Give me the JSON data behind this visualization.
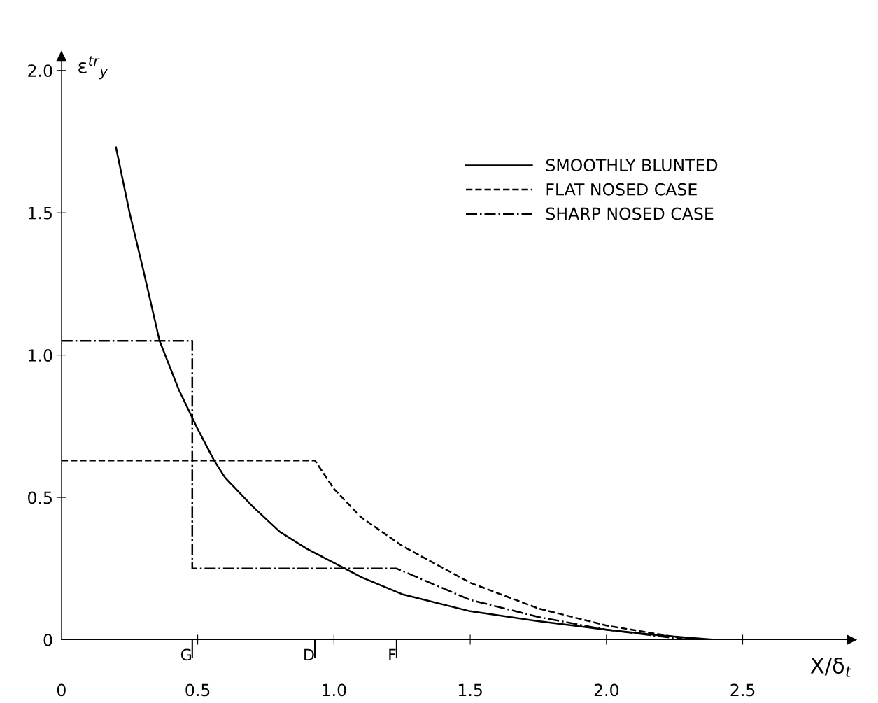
{
  "chart_data": {
    "type": "line",
    "xlabel": "X/δ$_{t}$",
    "ylabel": "ε$^{tr}$$_{y}$",
    "xlim": [
      0,
      2.9
    ],
    "ylim": [
      0,
      2.05
    ],
    "xticks": [
      0,
      0.5,
      {
        "value": 1.0,
        "label": "1.0"
      },
      1.5,
      {
        "value": 2.0,
        "label": "2.0"
      },
      2.5
    ],
    "yticks": [
      0,
      0.5,
      {
        "value": 1.0,
        "label": "1.0"
      },
      1.5,
      {
        "value": 2.0,
        "label": "2.0"
      }
    ],
    "grid": false,
    "legend": "top right",
    "marker": "none",
    "series": [
      {
        "name": "SMOOTHLY BLUNTED",
        "color": "#000000",
        "line_style": "solid",
        "x": [
          0.2,
          0.25,
          0.3,
          0.36,
          0.43,
          0.5,
          0.56,
          0.6,
          0.7,
          0.8,
          0.9,
          1.0,
          1.1,
          1.25,
          1.5,
          1.75,
          2.0,
          2.2,
          2.4
        ],
        "values": [
          1.73,
          1.5,
          1.3,
          1.05,
          0.88,
          0.74,
          0.63,
          0.57,
          0.47,
          0.38,
          0.32,
          0.27,
          0.22,
          0.16,
          0.1,
          0.065,
          0.035,
          0.015,
          0.0
        ]
      },
      {
        "name": "FLAT NOSED CASE",
        "color": "#000000",
        "line_style": "dashed",
        "x": [
          0,
          0.93,
          1.0,
          1.1,
          1.25,
          1.5,
          1.75,
          2.0,
          2.25,
          2.35
        ],
        "values": [
          0.63,
          0.63,
          0.53,
          0.43,
          0.33,
          0.2,
          0.11,
          0.05,
          0.01,
          0.0
        ]
      },
      {
        "name": "SHARP NOSED CASE",
        "color": "#000000",
        "line_style": "dashdot",
        "x": [
          0,
          0.48,
          0.48,
          1.23,
          1.5,
          1.75,
          2.0,
          2.3
        ],
        "values": [
          1.05,
          1.05,
          0.25,
          0.25,
          0.14,
          0.08,
          0.035,
          0.0
        ]
      }
    ],
    "ref_lines": [
      {
        "axis": "x",
        "value": 0.48,
        "label": "G"
      },
      {
        "axis": "x",
        "value": 0.93,
        "label": "D"
      },
      {
        "axis": "x",
        "value": 1.23,
        "label": "F"
      }
    ]
  }
}
